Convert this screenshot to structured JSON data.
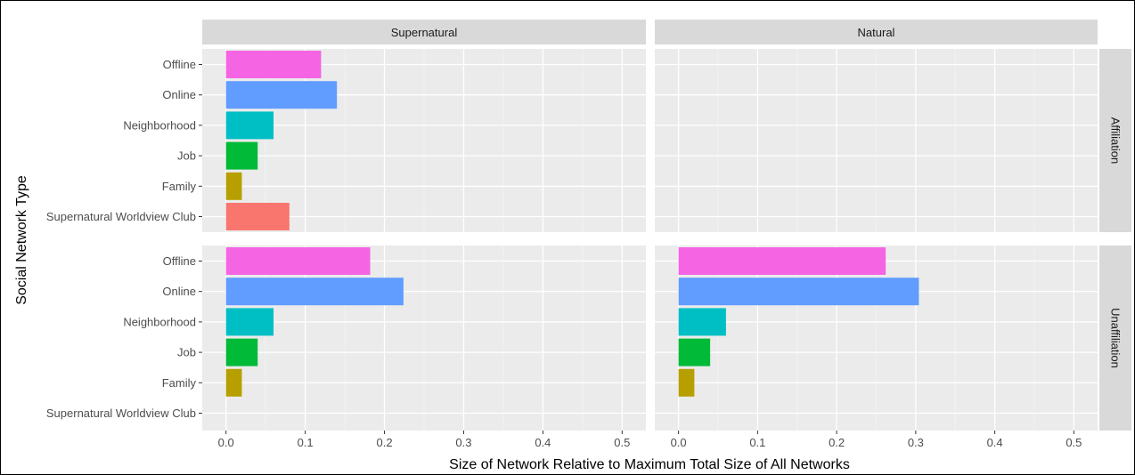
{
  "chart_data": {
    "type": "bar",
    "orientation": "horizontal",
    "xlabel": "Size of Network Relative to Maximum Total Size of All Networks",
    "ylabel": "Social Network Type",
    "xlim": [
      -0.03,
      0.53
    ],
    "xticks": [
      0.0,
      0.1,
      0.2,
      0.3,
      0.4,
      0.5
    ],
    "xtick_labels": [
      "0.0",
      "0.1",
      "0.2",
      "0.3",
      "0.4",
      "0.5"
    ],
    "categories": [
      "Offline",
      "Online",
      "Neighborhood",
      "Job",
      "Family",
      "Supernatural Worldview Club"
    ],
    "colors": {
      "Offline": "#F564E3",
      "Online": "#619CFF",
      "Neighborhood": "#00BFC4",
      "Job": "#00BA38",
      "Family": "#B79F00",
      "Supernatural Worldview Club": "#F8766D"
    },
    "facet_columns": [
      "Supernatural",
      "Natural"
    ],
    "facet_rows": [
      "Affiliation",
      "Unaffiliation"
    ],
    "grid": true,
    "legend": "none",
    "panels": [
      {
        "column": "Supernatural",
        "row": "Affiliation",
        "values": [
          0.12,
          0.14,
          0.06,
          0.04,
          0.02,
          0.08
        ]
      },
      {
        "column": "Natural",
        "row": "Affiliation",
        "values": [
          null,
          null,
          null,
          null,
          null,
          null
        ]
      },
      {
        "column": "Supernatural",
        "row": "Unaffiliation",
        "values": [
          0.182,
          0.224,
          0.06,
          0.04,
          0.02,
          null
        ]
      },
      {
        "column": "Natural",
        "row": "Unaffiliation",
        "values": [
          0.262,
          0.304,
          0.06,
          0.04,
          0.02,
          null
        ]
      }
    ]
  }
}
